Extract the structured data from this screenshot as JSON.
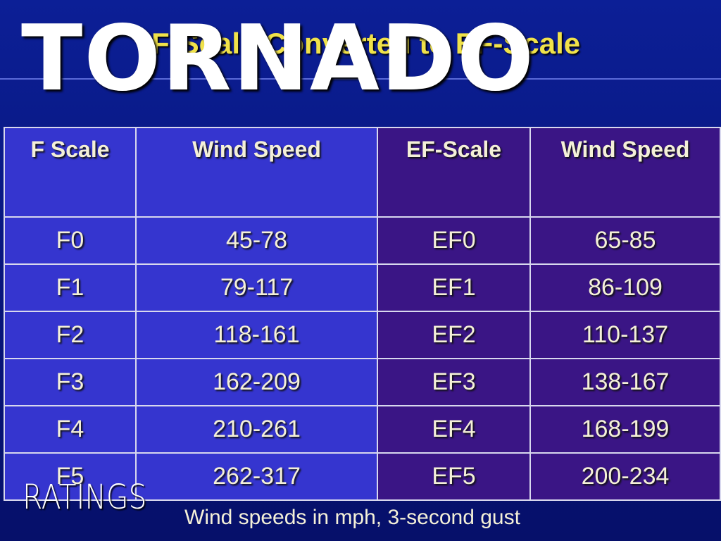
{
  "overlay": {
    "title": "TORNADO",
    "subtitle": "RATINGS"
  },
  "slide": {
    "title": "F-Scale Converted to EF-Scale",
    "footnote": "Wind speeds in mph, 3-second gust"
  },
  "table": {
    "header": [
      "F Scale",
      "Wind Speed",
      "EF-Scale",
      "Wind Speed"
    ],
    "rows": [
      [
        "F0",
        "45-78",
        "EF0",
        "65-85"
      ],
      [
        "F1",
        "79-117",
        "EF1",
        "86-109"
      ],
      [
        "F2",
        "118-161",
        "EF2",
        "110-137"
      ],
      [
        "F3",
        "162-209",
        "EF3",
        "138-167"
      ],
      [
        "F4",
        "210-261",
        "EF4",
        "168-199"
      ],
      [
        "F5",
        "262-317",
        "EF5",
        "200-234"
      ]
    ]
  }
}
